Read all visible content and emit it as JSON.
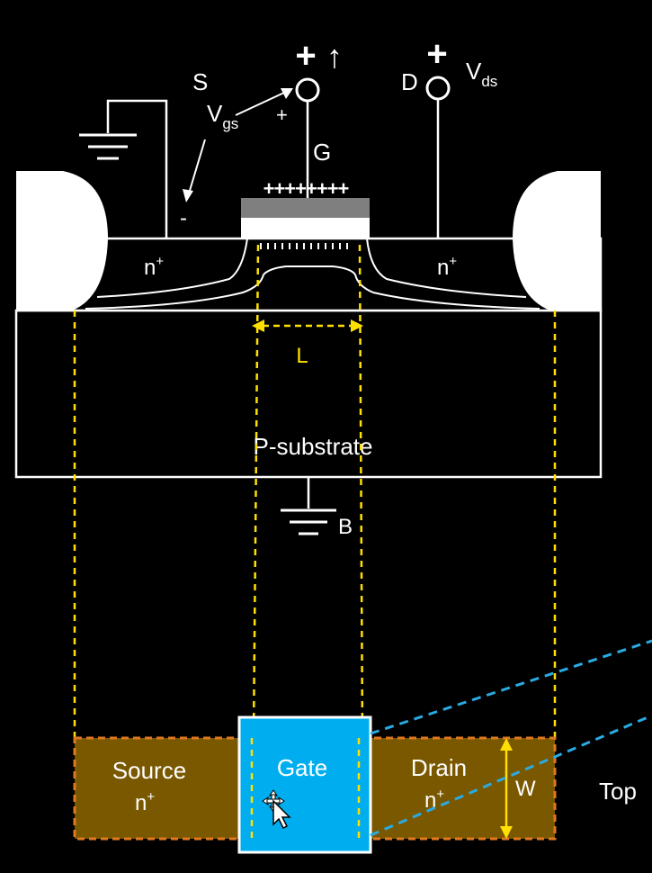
{
  "labels": {
    "source_terminal": "S",
    "gate_terminal": "G",
    "drain_terminal": "D",
    "body_terminal": "B",
    "vgs_main": "V",
    "vgs_sub": "gs",
    "vds_main": "V",
    "vds_sub": "ds",
    "gate_plus_sign": "+",
    "drain_plus_sign": "+",
    "up_arrow": "↑",
    "vgs_plus": "+",
    "vgs_minus": "-",
    "gate_charges": "++++++++",
    "source_region": "n",
    "drain_region": "n",
    "superscript_plus": "+",
    "substrate": "P-substrate",
    "length": "L",
    "width": "W"
  },
  "top_view": {
    "source_label": "Source",
    "source_type": "n",
    "gate_label": "Gate",
    "drain_label": "Drain",
    "drain_type": "n",
    "caption": "Top"
  },
  "colors": {
    "background": "#000000",
    "outline": "#ffffff",
    "dimension_yellow": "#ffe000",
    "diffusion_brown": "#7a5800",
    "diffusion_border": "#e07820",
    "gate_blue": "#00aeef",
    "gate_oxide_grey": "#7f7f7f",
    "leader_blue": "#29abe2"
  },
  "icons": {
    "cursor": "move-cursor-icon",
    "ground": "ground-symbol-icon"
  }
}
